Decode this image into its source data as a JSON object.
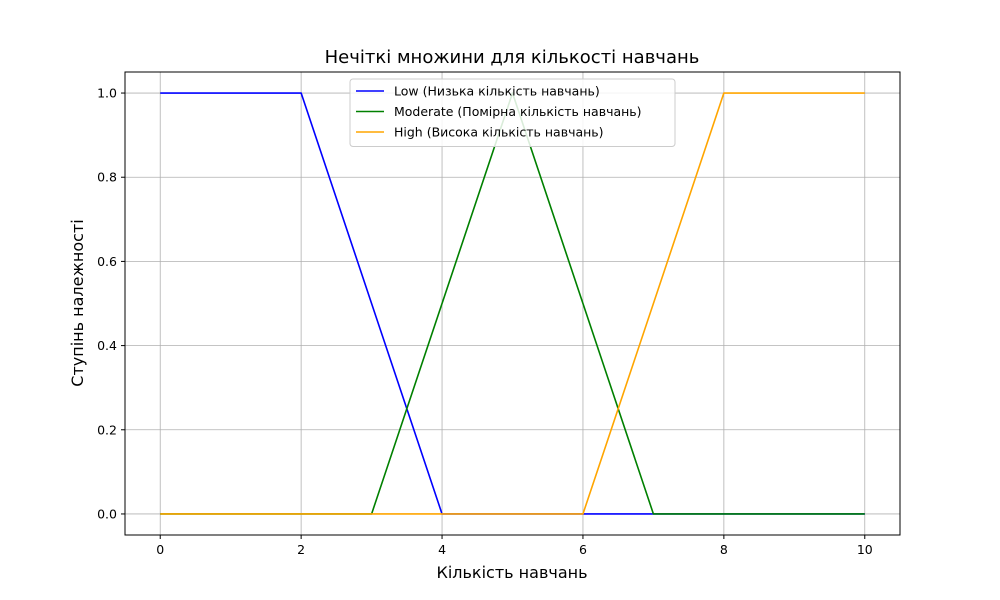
{
  "chart_data": {
    "type": "line",
    "title": "Нечіткі множини для кількості навчань",
    "xlabel": "Кількість навчань",
    "ylabel": "Ступінь належності",
    "xlim": [
      -0.5,
      10.5
    ],
    "ylim": [
      -0.05,
      1.05
    ],
    "xticks": [
      0,
      2,
      4,
      6,
      8,
      10
    ],
    "yticks": [
      0.0,
      0.2,
      0.4,
      0.6,
      0.8,
      1.0
    ],
    "xtick_labels": [
      "0",
      "2",
      "4",
      "6",
      "8",
      "10"
    ],
    "ytick_labels": [
      "0.0",
      "0.2",
      "0.4",
      "0.6",
      "0.8",
      "1.0"
    ],
    "grid": true,
    "legend_position": "top-center",
    "series": [
      {
        "name": "Low (Низька кількість навчань)",
        "color": "#0000ff",
        "x": [
          0,
          2,
          4,
          10
        ],
        "y": [
          1,
          1,
          0,
          0
        ]
      },
      {
        "name": "Moderate (Помірна кількість навчань)",
        "color": "#008000",
        "x": [
          0,
          3,
          5,
          7,
          10
        ],
        "y": [
          0,
          0,
          1,
          0,
          0
        ]
      },
      {
        "name": "High (Висока кількість навчань)",
        "color": "#ffa500",
        "x": [
          0,
          6,
          8,
          10
        ],
        "y": [
          0,
          0,
          1,
          1
        ]
      }
    ]
  }
}
